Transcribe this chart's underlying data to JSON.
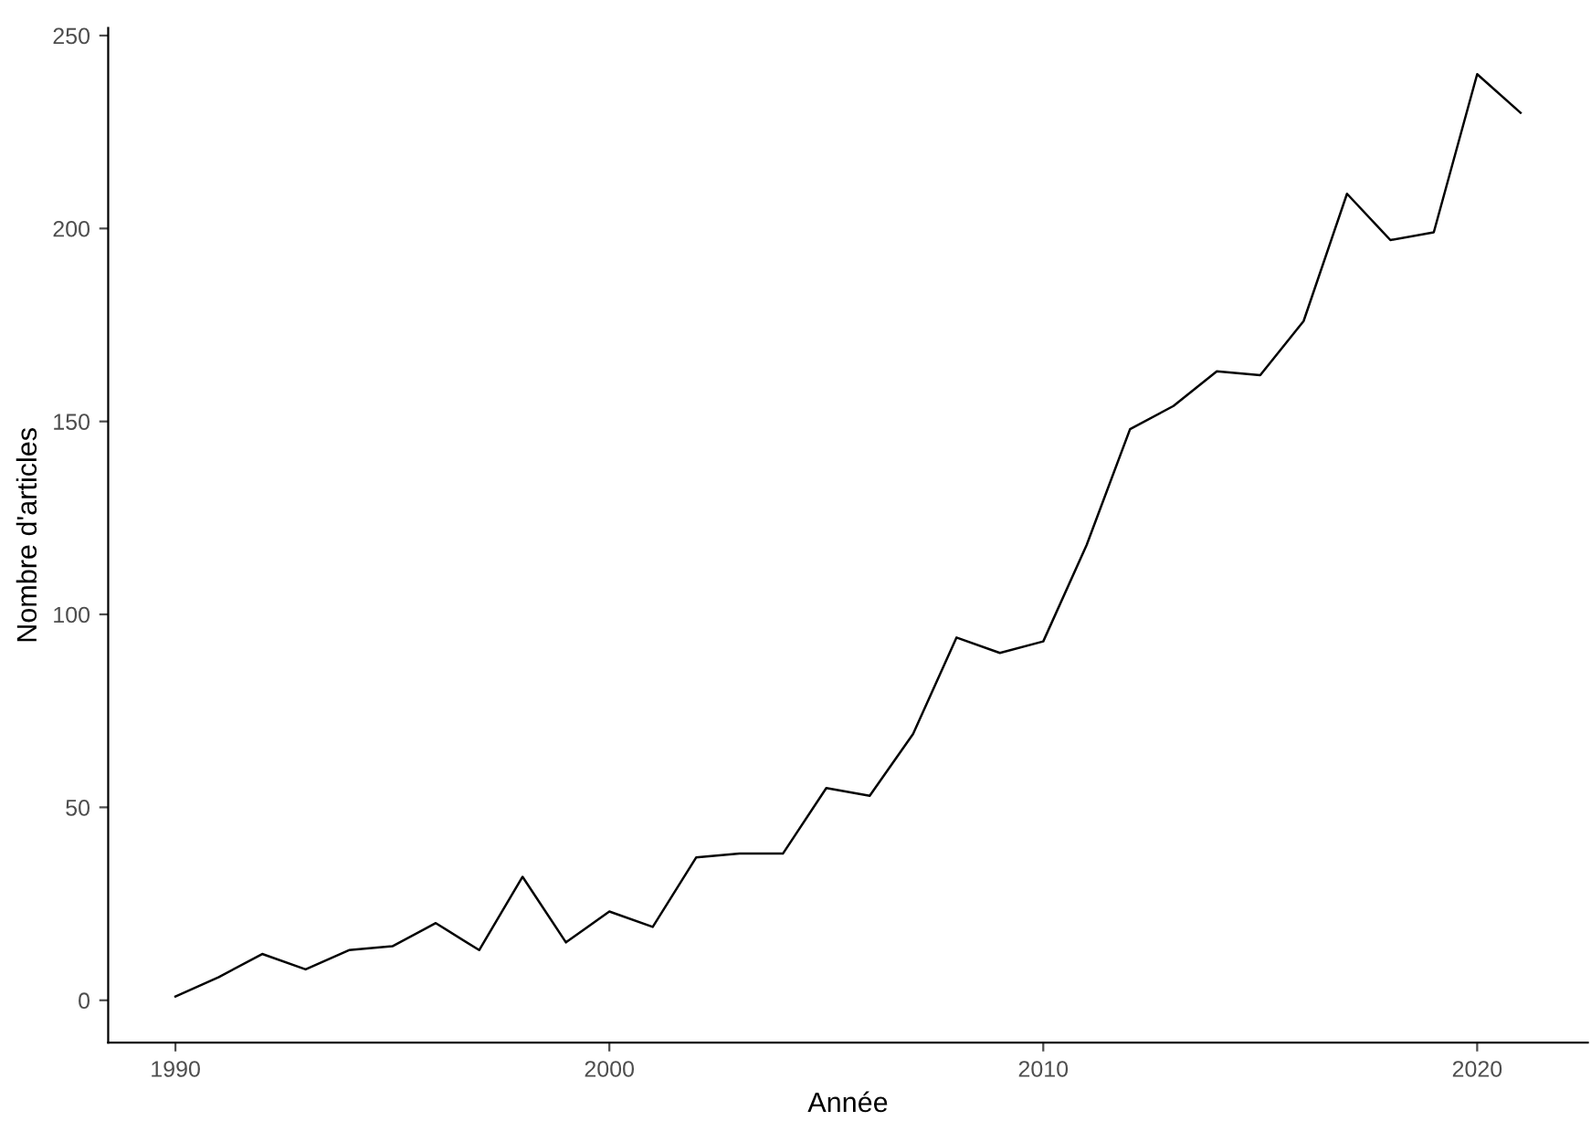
{
  "chart_data": {
    "type": "line",
    "xlabel": "Année",
    "ylabel": "Nombre d'articles",
    "x": [
      1990,
      1991,
      1992,
      1993,
      1994,
      1995,
      1996,
      1997,
      1998,
      1999,
      2000,
      2001,
      2002,
      2003,
      2004,
      2005,
      2006,
      2007,
      2008,
      2009,
      2010,
      2011,
      2012,
      2013,
      2014,
      2015,
      2016,
      2017,
      2018,
      2019,
      2020,
      2021
    ],
    "values": [
      1,
      6,
      12,
      8,
      13,
      14,
      20,
      13,
      32,
      15,
      23,
      19,
      37,
      38,
      38,
      55,
      53,
      69,
      94,
      90,
      93,
      118,
      148,
      154,
      163,
      162,
      176,
      209,
      197,
      199,
      240,
      230
    ],
    "color": "#000000",
    "xlim": [
      1988.45,
      2022.55
    ],
    "ylim": [
      -10.95,
      251.95
    ],
    "xticks": [
      1990,
      2000,
      2010,
      2020
    ],
    "yticks": [
      0,
      50,
      100,
      150,
      200,
      250
    ],
    "grid": false,
    "legend": false,
    "marker": "none",
    "line_style": "solid"
  }
}
